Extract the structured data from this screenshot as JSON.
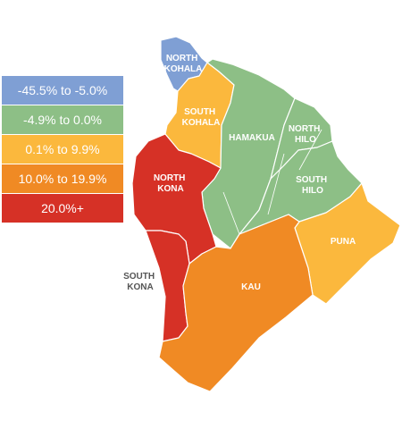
{
  "legend": [
    {
      "label": "-45.5% to -5.0%",
      "color": "#7f9fd4"
    },
    {
      "label": "-4.9% to 0.0%",
      "color": "#8dbf86"
    },
    {
      "label": "0.1% to 9.9%",
      "color": "#fbb83d"
    },
    {
      "label": "10.0% to 19.9%",
      "color": "#f08a24"
    },
    {
      "label": "20.0%+",
      "color": "#d63126"
    }
  ],
  "districts": {
    "north_kohala": {
      "label_lines": [
        "NORTH",
        "KOHALA"
      ],
      "range": "-45.5% to -5.0%"
    },
    "south_kohala": {
      "label_lines": [
        "SOUTH",
        "KOHALA"
      ],
      "range": "0.1% to 9.9%"
    },
    "hamakua": {
      "label_lines": [
        "HAMAKUA"
      ],
      "range": "-4.9% to 0.0%"
    },
    "north_hilo": {
      "label_lines": [
        "NORTH",
        "HILO"
      ],
      "range": "-4.9% to 0.0%"
    },
    "south_hilo": {
      "label_lines": [
        "SOUTH",
        "HILO"
      ],
      "range": "-4.9% to 0.0%"
    },
    "north_kona": {
      "label_lines": [
        "NORTH",
        "KONA"
      ],
      "range": "20.0%+"
    },
    "south_kona": {
      "label_lines": [
        "SOUTH",
        "KONA"
      ],
      "range": "20.0%+"
    },
    "puna": {
      "label_lines": [
        "PUNA"
      ],
      "range": "0.1% to 9.9%"
    },
    "kau": {
      "label_lines": [
        "KAU"
      ],
      "range": "10.0% to 19.9%"
    }
  }
}
